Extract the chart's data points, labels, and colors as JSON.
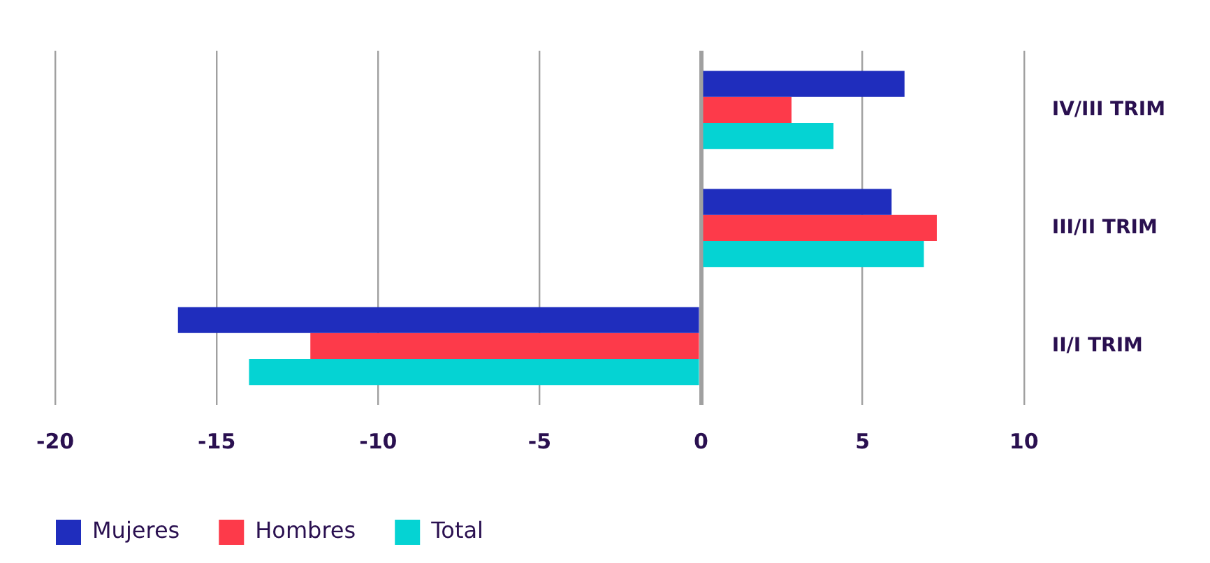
{
  "chart_data": {
    "type": "bar",
    "orientation": "horizontal",
    "categories": [
      "IV/III TRIM",
      "III/II TRIM",
      "II/I TRIM"
    ],
    "series": [
      {
        "name": "Mujeres",
        "color": "#1f2dbd",
        "values": [
          6.3,
          5.9,
          -16.2
        ]
      },
      {
        "name": "Hombres",
        "color": "#fd3a4a",
        "values": [
          2.8,
          7.3,
          -12.1
        ]
      },
      {
        "name": "Total",
        "color": "#05d3d3",
        "values": [
          4.1,
          6.9,
          -14.0
        ]
      }
    ],
    "xlim": [
      -20,
      10
    ],
    "xticks": [
      -20,
      -15,
      -10,
      -5,
      0,
      5,
      10
    ],
    "grid": "x",
    "legend": "bottom left"
  }
}
